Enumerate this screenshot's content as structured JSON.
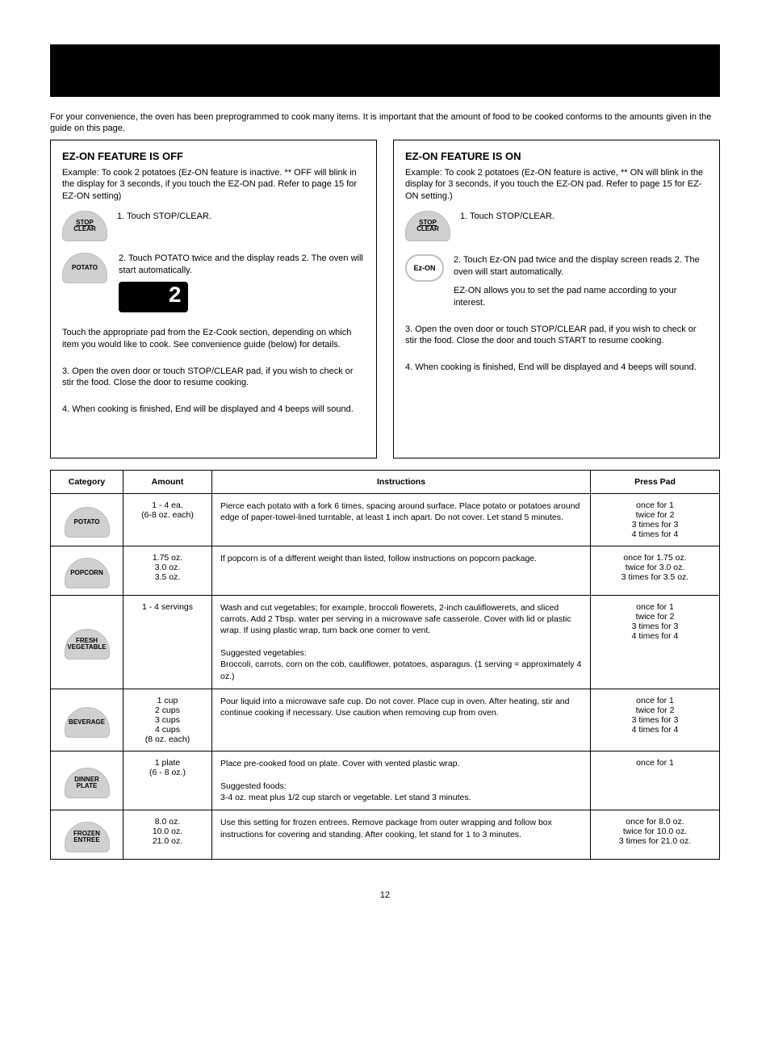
{
  "intro": "For your convenience, the oven has been preprogrammed to cook many items. It is important that the amount of food to be cooked conforms to the amounts given in the guide on this page.",
  "left": {
    "title": "EZ-ON FEATURE IS OFF",
    "intro": "Example: To cook 2 potatoes (Ez-ON feature is inactive. ** OFF will blink in the display for 3 seconds, if you touch the EZ-ON pad. Refer to page 15 for EZ-ON setting)",
    "step1": "1. Touch STOP/CLEAR.",
    "step2": "2. Touch POTATO twice and the display reads 2. The oven will start automatically.",
    "pair_note": "Touch the appropriate pad from the Ez-Cook section, depending on which item you would like to cook. See convenience guide (below) for details.",
    "step3": "3. Open the oven door or touch STOP/CLEAR pad, if you wish to check or stir the food. Close the door to resume cooking.",
    "step4": "4. When cooking is finished, End will be displayed and 4 beeps will sound.",
    "btn_stop1": "STOP",
    "btn_stop2": "CLEAR",
    "btn_potato": "POTATO",
    "lcd": "2"
  },
  "right": {
    "title": "EZ-ON FEATURE IS ON",
    "intro": "Example: To cook 2 potatoes (Ez-ON feature is active, ** ON will blink in the display for 3 seconds, if you touch the EZ-ON pad. Refer to page 15 for EZ-ON setting.)",
    "step1": "1. Touch STOP/CLEAR.",
    "step2": "2. Touch Ez-ON pad twice and the display screen reads 2. The oven will start automatically.",
    "note": "EZ-ON allows you to set the pad name according to your interest.",
    "step3": "3. Open the oven door or touch STOP/CLEAR pad, if you wish to check or stir the food. Close the door and touch START to resume cooking.",
    "step4": "4. When cooking is finished, End will be displayed and 4 beeps will sound.",
    "btn_stop1": "STOP",
    "btn_stop2": "CLEAR",
    "btn_ezon": "Ez-ON"
  },
  "table": {
    "headers": [
      "Category",
      "Amount",
      "Instructions",
      "Press Pad"
    ],
    "rows": [
      {
        "btn": "POTATO",
        "amount": "1 - 4 ea.\n(6-8 oz. each)",
        "inst": "Pierce each potato with a fork 6 times, spacing around surface. Place potato or potatoes around edge of paper-towel-lined turntable, at least 1 inch apart. Do not cover. Let stand 5 minutes.",
        "press": "once for 1\ntwice for 2\n3 times for 3\n4 times for 4"
      },
      {
        "btn": "POPCORN",
        "amount": "1.75 oz.\n3.0 oz.\n3.5 oz.",
        "inst": "If popcorn is of a different weight than listed, follow instructions on popcorn package.",
        "press": "once for 1.75 oz.\ntwice for 3.0 oz.\n3 times for 3.5 oz."
      },
      {
        "btn": "FRESH\nVEGETABLE",
        "amount": "1 - 4 servings",
        "inst": "Wash and cut vegetables; for example, broccoli flowerets, 2-inch cauliflowerets, and sliced carrots. Add 2 Tbsp. water per serving in a microwave safe casserole. Cover with lid or plastic wrap. If using plastic wrap, turn back one corner to vent.\n\nSuggested vegetables:\nBroccoli, carrots, corn on the cob, cauliflower, potatoes, asparagus. (1 serving = approximately 4 oz.)",
        "press": "once for 1\ntwice for 2\n3 times for 3\n4 times for 4"
      },
      {
        "btn": "BEVERAGE",
        "amount": "1 cup\n2 cups\n3 cups\n4 cups\n(8 oz. each)",
        "inst": "Pour liquid into a microwave safe cup. Do not cover. Place cup in oven. After heating, stir and continue cooking if necessary. Use caution when removing cup from oven.",
        "press": "once for 1\ntwice for 2\n3 times for 3\n4 times for 4"
      },
      {
        "btn": "DINNER\nPLATE",
        "amount": "1 plate\n(6 - 8 oz.)",
        "inst": "Place pre-cooked food on plate. Cover with vented plastic wrap.\n\nSuggested foods:\n3-4 oz. meat plus 1/2 cup starch or vegetable. Let stand 3 minutes.",
        "press": "once for 1"
      },
      {
        "btn": "FROZEN\nENTREE",
        "amount": "8.0 oz.\n10.0 oz.\n21.0 oz.",
        "inst": "Use this setting for frozen entrees. Remove package from outer wrapping and follow box instructions for covering and standing. After cooking, let stand for 1 to 3 minutes.",
        "press": "once for 8.0 oz.\ntwice for 10.0 oz.\n3 times for 21.0 oz."
      }
    ]
  },
  "footer": "12"
}
